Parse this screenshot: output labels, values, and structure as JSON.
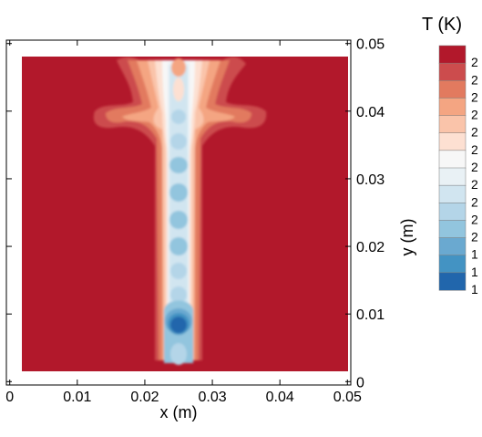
{
  "chart_data": {
    "type": "heatmap",
    "subtype": "filled-contour",
    "xlabel": "x (m)",
    "ylabel": "y (m)",
    "xlim": [
      -0.0005,
      0.0505
    ],
    "ylim": [
      -0.0005,
      0.0505
    ],
    "x_ticks": [
      0,
      0.01,
      0.02,
      0.03,
      0.04,
      0.05
    ],
    "x_tick_labels": [
      "0",
      "0.01",
      "0.02",
      "0.03",
      "0.04",
      "0.05"
    ],
    "y_ticks": [
      0,
      0.01,
      0.02,
      0.03,
      0.04,
      0.05
    ],
    "y_tick_labels": [
      "0",
      "0.01",
      "0.02",
      "0.03",
      "0.04",
      "0.05"
    ],
    "field_extent": {
      "x": [
        0,
        0.05
      ],
      "y": [
        0,
        0.05
      ]
    },
    "colorbar": {
      "title": "T (K)",
      "level_colors": [
        "#b2182b",
        "#cc4c4d",
        "#e27a5f",
        "#f4a582",
        "#fac4aa",
        "#fde0d2",
        "#f7f7f7",
        "#e9f1f5",
        "#d1e5f0",
        "#b4d5e8",
        "#92c5de",
        "#6aa9d0",
        "#4393c3",
        "#2166ac"
      ],
      "level_labels": [
        "2",
        "2",
        "2",
        "2",
        "2",
        "2",
        "2",
        "2",
        "2",
        "2",
        "2",
        "1",
        "1",
        "1"
      ]
    },
    "features": {
      "jet_center_x": 0.025,
      "ambient": "highest temperature level",
      "jet_core": "cold core, coldest near the inlet at y≈0.005"
    }
  }
}
